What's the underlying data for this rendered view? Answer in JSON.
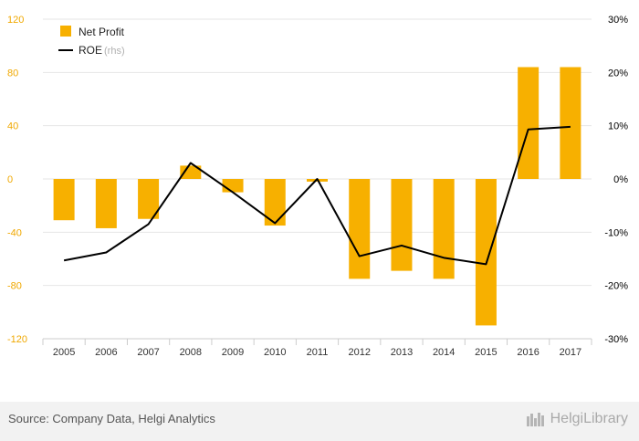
{
  "colors": {
    "bar": "#f7b000",
    "line": "#000000",
    "left_axis_text": "#f0a800",
    "right_axis_text": "#000000",
    "grid": "#e6e6e6",
    "footer_bg": "#f2f2f2",
    "legend_muted": "#b0b0b0"
  },
  "chart_data": {
    "type": "bar",
    "categories": [
      "2005",
      "2006",
      "2007",
      "2008",
      "2009",
      "2010",
      "2011",
      "2012",
      "2013",
      "2014",
      "2015",
      "2016",
      "2017"
    ],
    "series": [
      {
        "name": "Net Profit",
        "type": "bar",
        "axis": "left",
        "values": [
          -31,
          -37,
          -30,
          10,
          -10,
          -35,
          -2,
          -75,
          -69,
          -75,
          -110,
          84,
          84
        ]
      },
      {
        "name": "ROE",
        "type": "line",
        "axis": "right",
        "unit": "%",
        "values": [
          -15.3,
          -13.8,
          -8.5,
          3.0,
          -2.5,
          -8.3,
          0.0,
          -14.5,
          -12.5,
          -14.8,
          -16.0,
          9.3,
          9.8
        ]
      }
    ],
    "y_left": {
      "range": [
        -120,
        120
      ],
      "ticks": [
        "120",
        "80",
        "40",
        "0",
        "-40",
        "-80",
        "-120"
      ],
      "tick_values": [
        120,
        80,
        40,
        0,
        -40,
        -80,
        -120
      ]
    },
    "y_right": {
      "range": [
        -30,
        30
      ],
      "ticks": [
        "30%",
        "20%",
        "10%",
        "0%",
        "-10%",
        "-20%",
        "-30%"
      ],
      "tick_values": [
        30,
        20,
        10,
        0,
        -10,
        -20,
        -30
      ]
    },
    "legend": [
      {
        "label": "Net Profit",
        "suffix": ""
      },
      {
        "label": "ROE",
        "suffix": "(rhs)"
      }
    ],
    "legend_position": "top-left",
    "grid": true
  },
  "footer": {
    "source": "Source: Company Data, Helgi Analytics",
    "brand": "HelgiLibrary",
    "brand_icon": "bookshelf-logo-icon"
  }
}
